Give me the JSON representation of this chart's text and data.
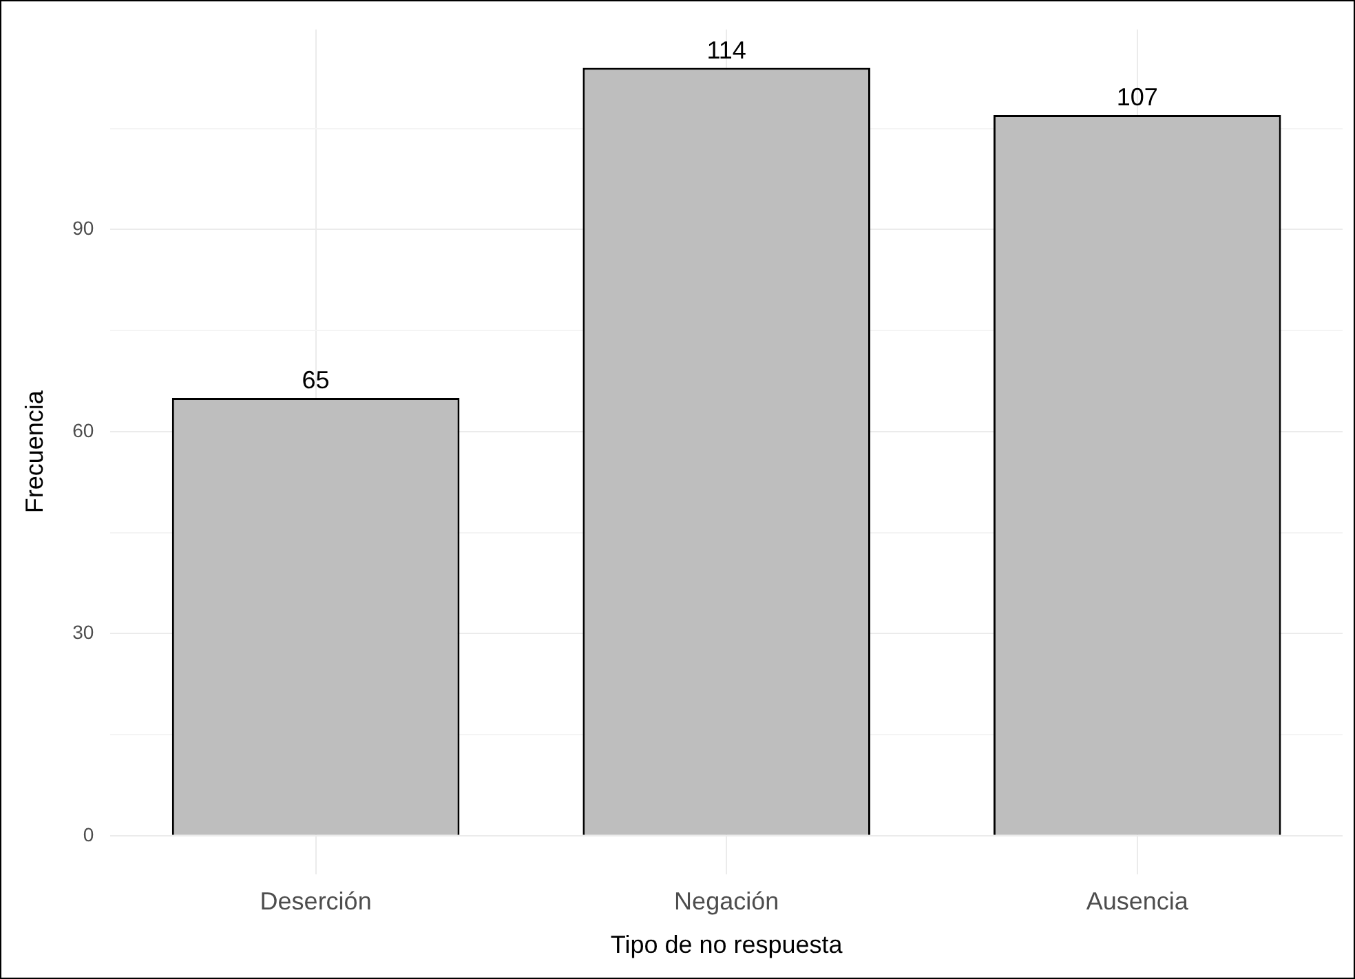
{
  "chart_data": {
    "type": "bar",
    "xlabel": "Tipo de no respuesta",
    "ylabel": "Frecuencia",
    "categories": [
      "Deserción",
      "Negación",
      "Ausencia"
    ],
    "values": [
      65,
      114,
      107
    ],
    "color": "#bebebe",
    "ylim": [
      -5.7,
      119.7
    ],
    "yticks": [
      0,
      {
        "value": 15,
        "label": null
      },
      30,
      {
        "value": 45,
        "label": null
      },
      60,
      {
        "value": 75,
        "label": null
      },
      90,
      {
        "value": 105,
        "label": null
      }
    ],
    "grid": true,
    "data_labels": true
  }
}
